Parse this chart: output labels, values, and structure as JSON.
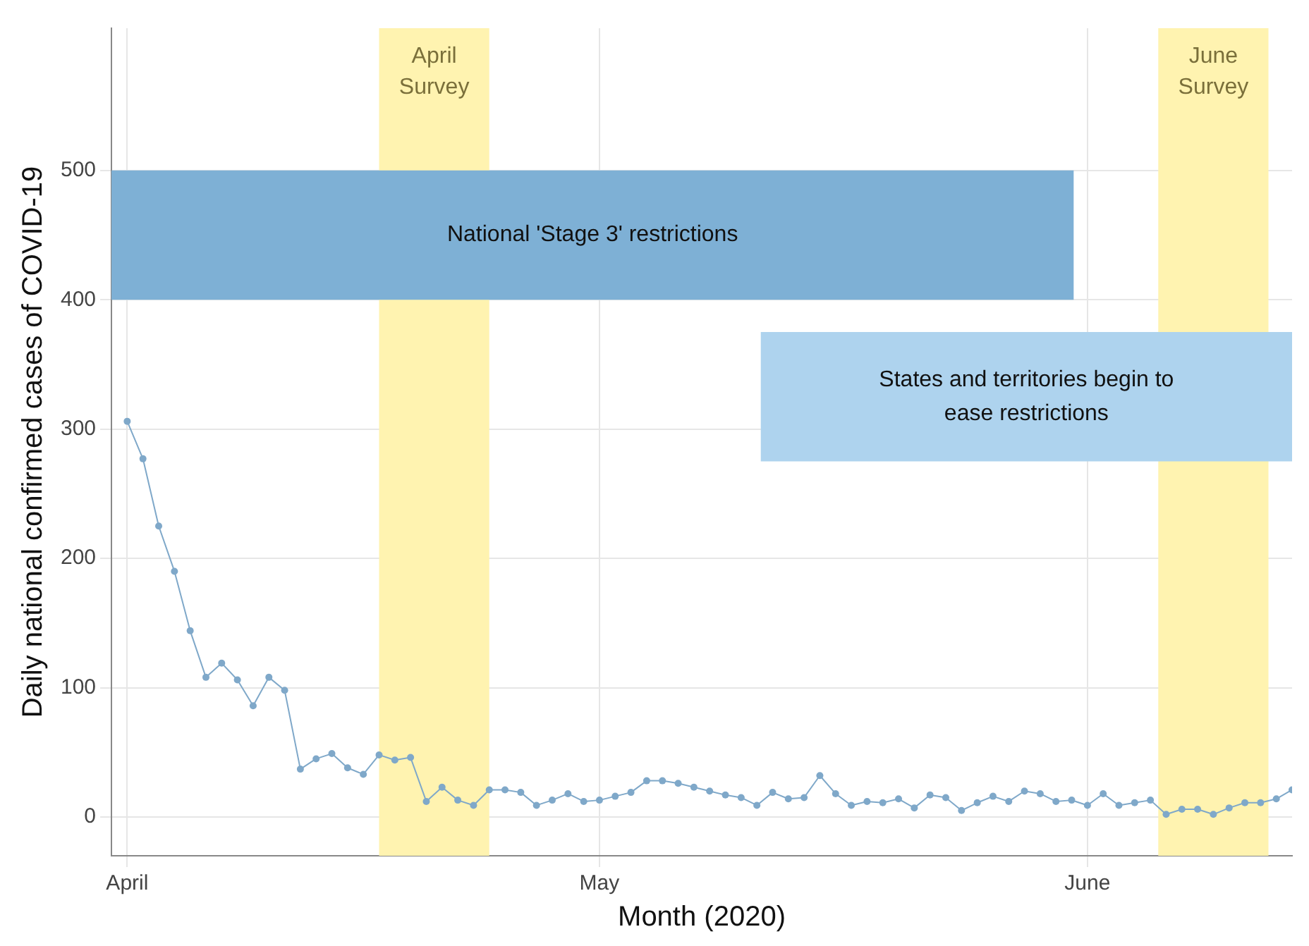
{
  "chart_data": {
    "type": "line",
    "xlabel": "Month (2020)",
    "ylabel": "Daily national confirmed cases of COVID-19",
    "x": [
      "2020-04-01",
      "2020-04-02",
      "2020-04-03",
      "2020-04-04",
      "2020-04-05",
      "2020-04-06",
      "2020-04-07",
      "2020-04-08",
      "2020-04-09",
      "2020-04-10",
      "2020-04-11",
      "2020-04-12",
      "2020-04-13",
      "2020-04-14",
      "2020-04-15",
      "2020-04-16",
      "2020-04-17",
      "2020-04-18",
      "2020-04-19",
      "2020-04-20",
      "2020-04-21",
      "2020-04-22",
      "2020-04-23",
      "2020-04-24",
      "2020-04-25",
      "2020-04-26",
      "2020-04-27",
      "2020-04-28",
      "2020-04-29",
      "2020-04-30",
      "2020-05-01",
      "2020-05-02",
      "2020-05-03",
      "2020-05-04",
      "2020-05-05",
      "2020-05-06",
      "2020-05-07",
      "2020-05-08",
      "2020-05-09",
      "2020-05-10",
      "2020-05-11",
      "2020-05-12",
      "2020-05-13",
      "2020-05-14",
      "2020-05-15",
      "2020-05-16",
      "2020-05-17",
      "2020-05-18",
      "2020-05-19",
      "2020-05-20",
      "2020-05-21",
      "2020-05-22",
      "2020-05-23",
      "2020-05-24",
      "2020-05-25",
      "2020-05-26",
      "2020-05-27",
      "2020-05-28",
      "2020-05-29",
      "2020-05-30",
      "2020-05-31",
      "2020-06-01",
      "2020-06-02",
      "2020-06-03",
      "2020-06-04",
      "2020-06-05",
      "2020-06-06",
      "2020-06-07",
      "2020-06-08",
      "2020-06-09",
      "2020-06-10",
      "2020-06-11",
      "2020-06-12",
      "2020-06-13",
      "2020-06-14"
    ],
    "series": [
      {
        "color": "#7fa8c9",
        "values": [
          306,
          277,
          225,
          190,
          144,
          108,
          119,
          106,
          86,
          108,
          98,
          37,
          45,
          49,
          38,
          33,
          48,
          44,
          46,
          12,
          23,
          13,
          9,
          21,
          21,
          19,
          9,
          13,
          18,
          12,
          13,
          16,
          19,
          28,
          28,
          26,
          23,
          20,
          17,
          15,
          9,
          19,
          14,
          15,
          32,
          18,
          9,
          12,
          11,
          14,
          7,
          17,
          15,
          5,
          11,
          16,
          12,
          20,
          18,
          12,
          13,
          9,
          18,
          9,
          11,
          13,
          2,
          6,
          6,
          2,
          7,
          11,
          11,
          14,
          21
        ]
      }
    ],
    "xlim": [
      "2020-03-31",
      "2020-06-14"
    ],
    "xticks": [
      {
        "value": "2020-04-01",
        "label": "April"
      },
      {
        "value": "2020-05-01",
        "label": "May"
      },
      {
        "value": "2020-06-01",
        "label": "June"
      }
    ],
    "ylim": [
      -30,
      610
    ],
    "yticks": [
      0,
      100,
      200,
      300,
      400,
      500
    ],
    "bands": [
      {
        "axis": "x",
        "from": "2020-04-17",
        "to": "2020-04-24",
        "label": "April Survey",
        "color": "#fff3b0"
      },
      {
        "axis": "x",
        "from": "2020-06-05T12:00",
        "to": "2020-06-12T12:00",
        "label": "June Survey",
        "color": "#fff3b0"
      },
      {
        "axis": "y",
        "from": 400,
        "to": 500,
        "label": "National 'Stage 3' restrictions",
        "color": "#7eb0d5"
      },
      {
        "axis": "y",
        "from": 275,
        "to": 375,
        "label": "States and territories begin to ease restrictions",
        "color": "#aed3ee"
      }
    ],
    "grid": true,
    "marker": "circle",
    "line_style": "solid",
    "legend": false
  }
}
